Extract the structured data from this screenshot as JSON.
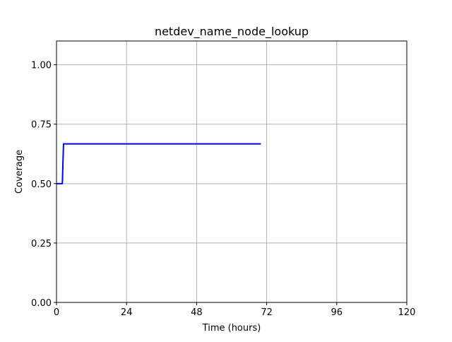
{
  "chart_data": {
    "type": "line",
    "title": "netdev_name_node_lookup",
    "xlabel": "Time (hours)",
    "ylabel": "Coverage",
    "xlim": [
      0,
      120
    ],
    "ylim": [
      0,
      1.1
    ],
    "x_ticks": [
      0,
      24,
      48,
      72,
      96,
      120
    ],
    "x_tick_labels": [
      "0",
      "24",
      "48",
      "72",
      "96",
      "120"
    ],
    "y_ticks": [
      0,
      0.25,
      0.5,
      0.75,
      1.0
    ],
    "y_tick_labels": [
      "0.00",
      "0.25",
      "0.50",
      "0.75",
      "1.00"
    ],
    "grid": true,
    "series": [
      {
        "color": "#0000ff",
        "x": [
          0,
          2,
          2.4,
          70
        ],
        "y": [
          0.5,
          0.5,
          0.667,
          0.667
        ]
      }
    ]
  }
}
